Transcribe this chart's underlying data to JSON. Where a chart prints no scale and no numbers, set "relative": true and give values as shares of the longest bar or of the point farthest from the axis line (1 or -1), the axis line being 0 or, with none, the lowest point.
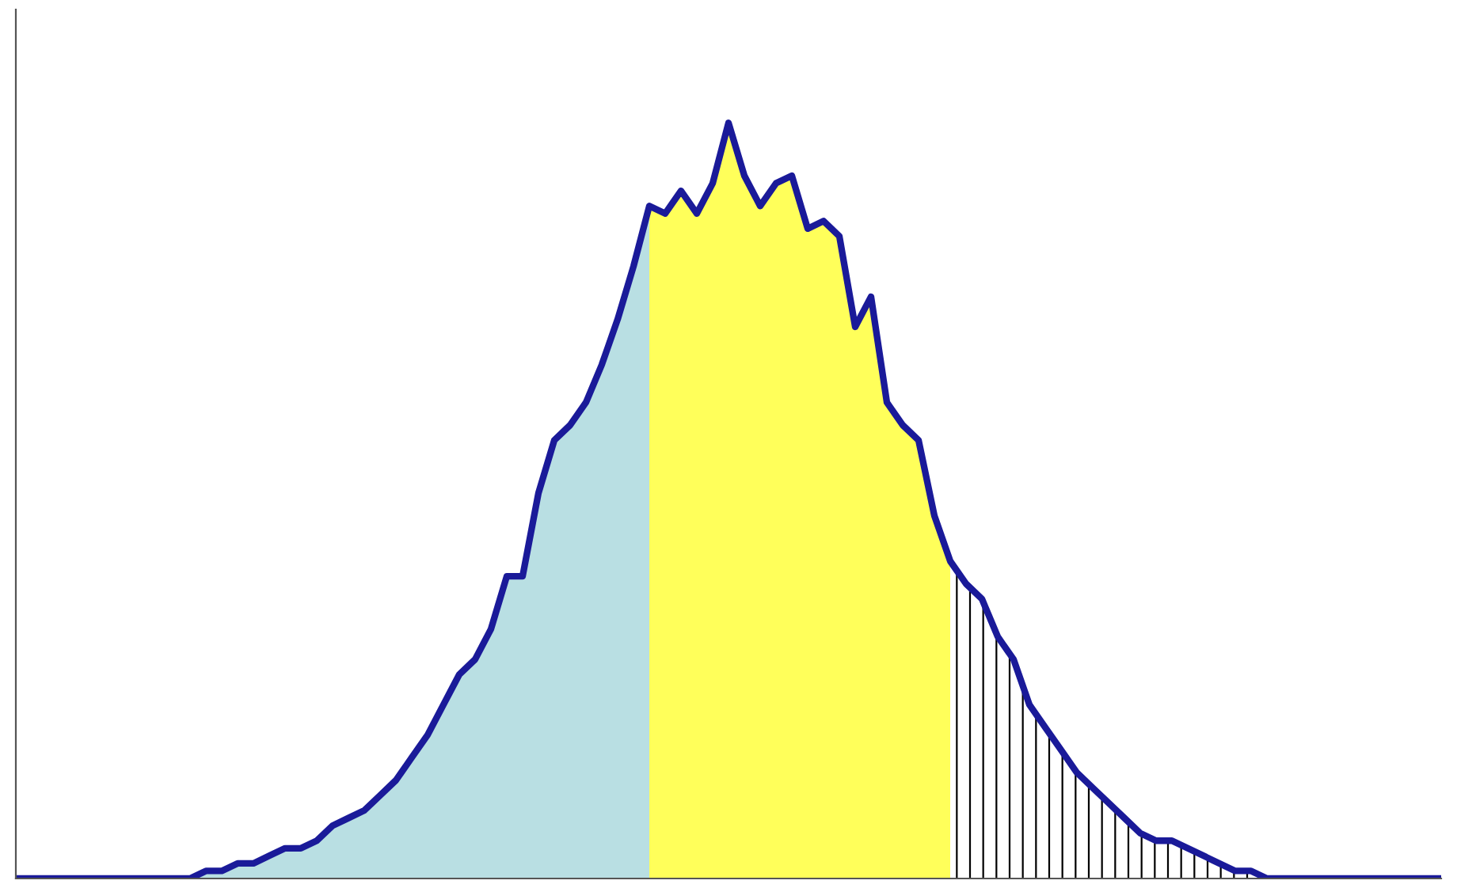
{
  "chart_data": {
    "type": "area",
    "relative": true,
    "categories": [
      null,
      null,
      null,
      null,
      null,
      null,
      null,
      null,
      null,
      null,
      null,
      null,
      null,
      null,
      null,
      null,
      null,
      null,
      null,
      null,
      null,
      null,
      null,
      null,
      null,
      null,
      null,
      null,
      null,
      null,
      null,
      null,
      null,
      null,
      null,
      null,
      null,
      null,
      null,
      null,
      null,
      null,
      null,
      null,
      null,
      null,
      null,
      null,
      null,
      null,
      null,
      null,
      null,
      null,
      null,
      null,
      null,
      null,
      null,
      null,
      null,
      null,
      null,
      null,
      null,
      null,
      null,
      null,
      null,
      null,
      null,
      null,
      null,
      null,
      null,
      null,
      null,
      null,
      null,
      null,
      null,
      null,
      null,
      null,
      null,
      null,
      null,
      null,
      null,
      null,
      null
    ],
    "series": [
      {
        "color": "#b9dfe3",
        "values": [
          0,
          0,
          0,
          0,
          0,
          0,
          0,
          0,
          0,
          0,
          0,
          0,
          0.01,
          0.01,
          0.02,
          0.02,
          0.03,
          0.04,
          0.04,
          0.05,
          0.07,
          0.08,
          0.09,
          0.11,
          0.13,
          0.16,
          0.19,
          0.23,
          0.27,
          0.29,
          0.33,
          0.4,
          0.4,
          0.51,
          0.58,
          0.6,
          0.63,
          0.68,
          0.74,
          0.81,
          0.89,
          null,
          null,
          null,
          null,
          null,
          null,
          null,
          null,
          null,
          null,
          null,
          null,
          null,
          null,
          null,
          null,
          null,
          null,
          null,
          null,
          null,
          null,
          null,
          null,
          null,
          null,
          null,
          null,
          null,
          null,
          null,
          null,
          null,
          null,
          null,
          null,
          null,
          null,
          null,
          null,
          null,
          null,
          null,
          null,
          null,
          null,
          null,
          null,
          null,
          null
        ]
      },
      {
        "color": "#ffff5a",
        "values": [
          null,
          null,
          null,
          null,
          null,
          null,
          null,
          null,
          null,
          null,
          null,
          null,
          null,
          null,
          null,
          null,
          null,
          null,
          null,
          null,
          null,
          null,
          null,
          null,
          null,
          null,
          null,
          null,
          null,
          null,
          null,
          null,
          null,
          null,
          null,
          null,
          null,
          null,
          null,
          null,
          0.89,
          0.88,
          0.91,
          0.88,
          0.92,
          1,
          0.93,
          0.89,
          0.92,
          0.93,
          0.86,
          0.87,
          0.85,
          0.73,
          0.77,
          0.63,
          0.6,
          0.58,
          0.48,
          0.42,
          null,
          null,
          null,
          null,
          null,
          null,
          null,
          null,
          null,
          null,
          null,
          null,
          null,
          null,
          null,
          null,
          null,
          null,
          null,
          null,
          null,
          null,
          null,
          null,
          null,
          null,
          null,
          null,
          null,
          null,
          null
        ]
      },
      {
        "color": "#ffffff",
        "values": [
          null,
          null,
          null,
          null,
          null,
          null,
          null,
          null,
          null,
          null,
          null,
          null,
          null,
          null,
          null,
          null,
          null,
          null,
          null,
          null,
          null,
          null,
          null,
          null,
          null,
          null,
          null,
          null,
          null,
          null,
          null,
          null,
          null,
          null,
          null,
          null,
          null,
          null,
          null,
          null,
          null,
          null,
          null,
          null,
          null,
          null,
          null,
          null,
          null,
          null,
          null,
          null,
          null,
          null,
          null,
          null,
          null,
          null,
          null,
          0.42,
          0.39,
          0.37,
          0.32,
          0.29,
          0.23,
          0.2,
          0.17,
          0.14,
          0.12,
          0.1,
          0.08,
          0.06,
          0.05,
          0.05,
          0.04,
          0.03,
          0.02,
          0.01,
          0.01,
          0,
          0,
          0,
          0,
          0,
          0,
          0,
          0,
          0,
          0,
          0,
          0
        ]
      },
      {
        "type": "line",
        "color": "#1a1a99",
        "values": [
          0,
          0,
          0,
          0,
          0,
          0,
          0,
          0,
          0,
          0,
          0,
          0,
          0.01,
          0.01,
          0.02,
          0.02,
          0.03,
          0.04,
          0.04,
          0.05,
          0.07,
          0.08,
          0.09,
          0.11,
          0.13,
          0.16,
          0.19,
          0.23,
          0.27,
          0.29,
          0.33,
          0.4,
          0.4,
          0.51,
          0.58,
          0.6,
          0.63,
          0.68,
          0.74,
          0.81,
          0.89,
          0.88,
          0.91,
          0.88,
          0.92,
          1,
          0.93,
          0.89,
          0.92,
          0.93,
          0.86,
          0.87,
          0.85,
          0.73,
          0.77,
          0.63,
          0.6,
          0.58,
          0.48,
          0.42,
          0.39,
          0.37,
          0.32,
          0.29,
          0.23,
          0.2,
          0.17,
          0.14,
          0.12,
          0.1,
          0.08,
          0.06,
          0.05,
          0.05,
          0.04,
          0.03,
          0.02,
          0.01,
          0.01,
          0,
          0,
          0,
          0,
          0,
          0,
          0,
          0,
          0,
          0,
          0,
          0
        ]
      }
    ],
    "grid": false
  }
}
